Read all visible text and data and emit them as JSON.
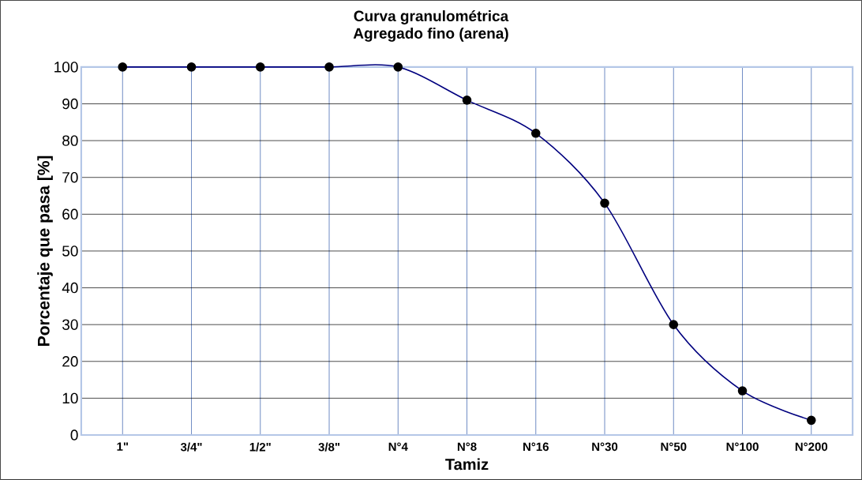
{
  "chart_data": {
    "type": "line",
    "title": "Curva granulométrica",
    "subtitle": "Agregado fino (arena)",
    "xlabel": "Tamiz",
    "ylabel": "Porcentaje que pasa [%]",
    "categories": [
      "1\"",
      "3/4\"",
      "1/2\"",
      "3/8\"",
      "N°4",
      "N°8",
      "N°16",
      "N°30",
      "N°50",
      "N°100",
      "N°200"
    ],
    "series": [
      {
        "color": "#00007f",
        "values": [
          100,
          100,
          100,
          100,
          100,
          91,
          82,
          63,
          30,
          12,
          4
        ]
      }
    ],
    "ylim": [
      0,
      100
    ],
    "yticks": [
      0,
      10,
      20,
      30,
      40,
      50,
      60,
      70,
      80,
      90,
      100
    ],
    "grid": true,
    "marker": "circle",
    "line_style": "solid"
  }
}
